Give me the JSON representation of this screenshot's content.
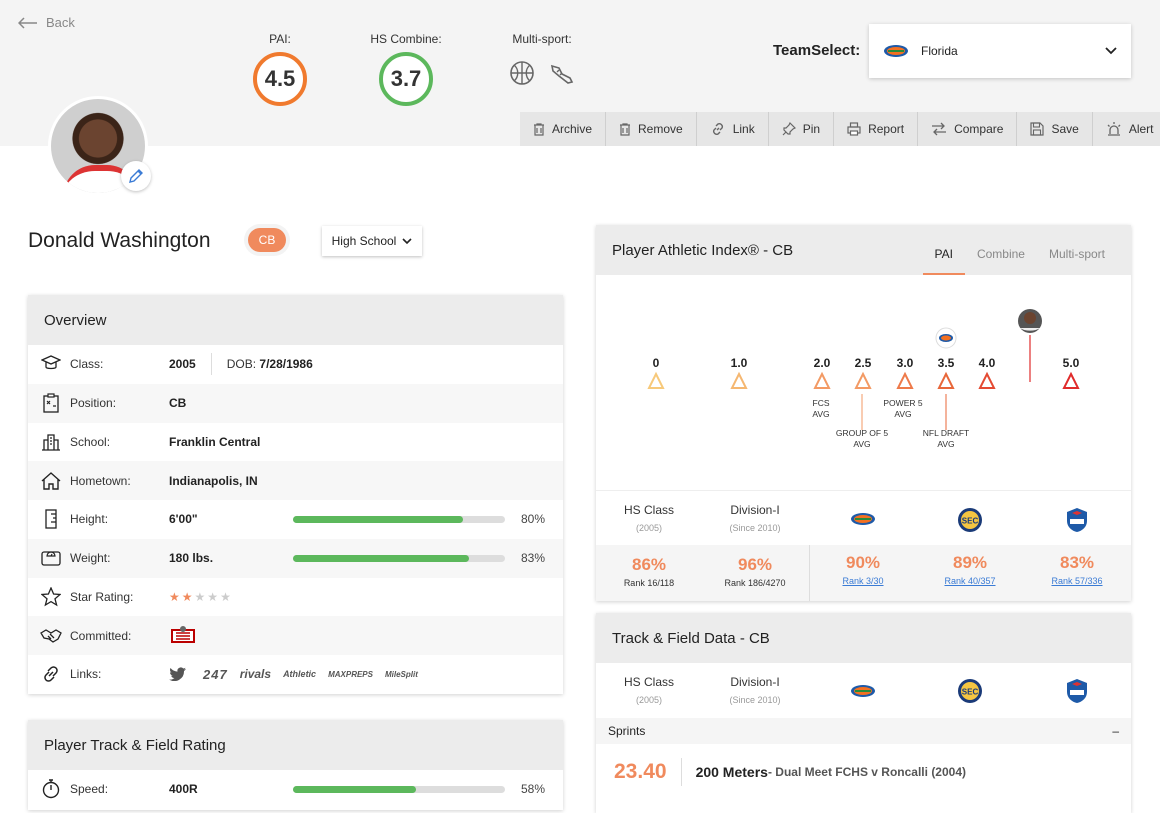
{
  "header": {
    "back_label": "Back",
    "metrics": [
      {
        "label": "PAI:",
        "value": "4.5",
        "color": "#f07a2e"
      },
      {
        "label": "HS Combine:",
        "value": "3.7",
        "color": "#5cb85c"
      }
    ],
    "multisport_label": "Multi-sport:",
    "team_label": "TeamSelect:",
    "team_value": "Florida",
    "toolbar": [
      "Archive",
      "Remove",
      "Link",
      "Pin",
      "Report",
      "Compare",
      "Save",
      "Alert"
    ]
  },
  "player": {
    "name": "Donald Washington",
    "position": "CB",
    "level": "High School"
  },
  "overview": {
    "title": "Overview",
    "class_label": "Class:",
    "class_value": "2005",
    "dob_label": "DOB:",
    "dob_value": "7/28/1986",
    "position_label": "Position:",
    "position_value": "CB",
    "school_label": "School:",
    "school_value": "Franklin Central",
    "hometown_label": "Hometown:",
    "hometown_value": "Indianapolis, IN",
    "height_label": "Height:",
    "height_value": "6'00\"",
    "height_pct": "80%",
    "height_fraction": 0.8,
    "weight_label": "Weight:",
    "weight_value": "180 lbs.",
    "weight_pct": "83%",
    "weight_fraction": 0.83,
    "star_label": "Star Rating:",
    "stars": 2,
    "stars_max": 5,
    "committed_label": "Committed:",
    "links_label": "Links:",
    "links": [
      "247",
      "rivals",
      "Athletic",
      "MAXPREPS",
      "MileSplit"
    ]
  },
  "track_rating": {
    "title": "Player Track & Field Rating",
    "speed_label": "Speed:",
    "speed_value": "400R",
    "speed_pct": "58%",
    "speed_fraction": 0.58
  },
  "pai_card": {
    "title": "Player Athletic Index® - CB",
    "tabs": [
      "PAI",
      "Combine",
      "Multi-sport"
    ],
    "scale": [
      "0",
      "1.0",
      "2.0",
      "2.5",
      "3.0",
      "3.5",
      "4.0",
      "5.0"
    ],
    "fcs": [
      "FCS",
      "AVG"
    ],
    "group5": [
      "GROUP OF 5",
      "AVG"
    ],
    "power5": [
      "POWER 5",
      "AVG"
    ],
    "nfl": [
      "NFL DRAFT",
      "AVG"
    ],
    "columns": {
      "hs_class": "HS Class",
      "hs_class_sub": "(2005)",
      "division": "Division-I",
      "division_sub": "(Since 2010)"
    },
    "stats": [
      {
        "pct": "86%",
        "rank": "Rank 16/118"
      },
      {
        "pct": "96%",
        "rank": "Rank 186/4270"
      },
      {
        "pct": "90%",
        "rank": "Rank 3/30"
      },
      {
        "pct": "89%",
        "rank": "Rank 40/357"
      },
      {
        "pct": "83%",
        "rank": "Rank 57/336"
      }
    ]
  },
  "track_card": {
    "title": "Track & Field Data - CB",
    "section": "Sprints",
    "collapse": "–",
    "time": "23.40",
    "event": "200 Meters",
    "event_detail": " - Dual Meet FCHS v Roncalli (2004)"
  }
}
